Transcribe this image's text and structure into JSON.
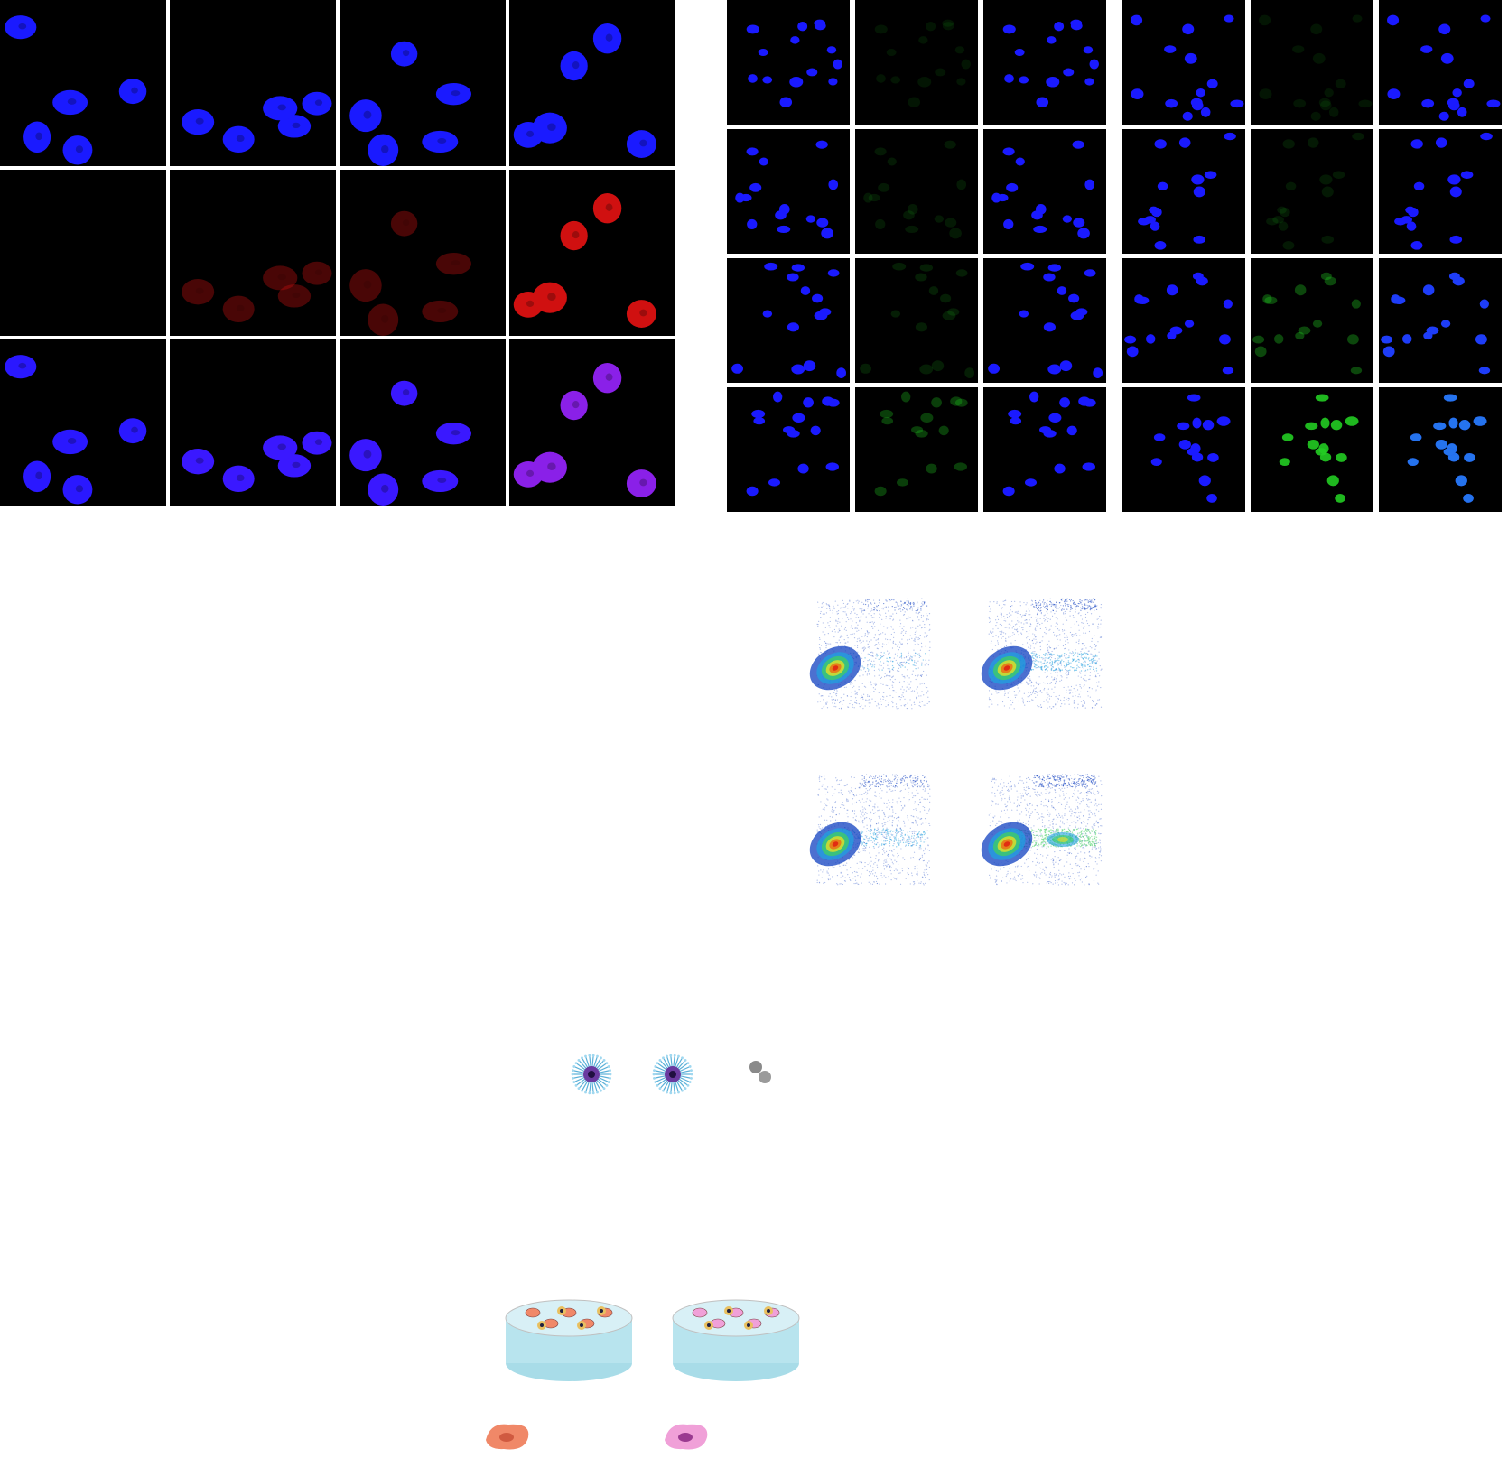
{
  "figure": {
    "panel_a": {
      "grid_rows": 3,
      "grid_cols": 4,
      "channels": [
        "dapi",
        "red",
        "merge"
      ],
      "channel_colors": {
        "dapi": "#1a1aff",
        "red": "#d01010",
        "merge_blue": "#2a18ff",
        "merge_purple": "#8a20e8"
      },
      "red_intensity_by_column": [
        0.0,
        0.35,
        0.35,
        1.0
      ]
    },
    "panel_b": {
      "grid_rows": 4,
      "grid_cols": 6,
      "channels": [
        "dapi",
        "green",
        "merge",
        "dapi",
        "green",
        "merge"
      ],
      "channel_colors": {
        "dapi": "#1a1aff",
        "green": "#22cc22",
        "merge": "#2a60ff"
      },
      "green_intensity_by_row_left": [
        0.1,
        0.12,
        0.15,
        0.3
      ],
      "green_intensity_by_row_right": [
        0.1,
        0.12,
        0.35,
        0.9
      ]
    },
    "panel_c": {
      "plots": 4,
      "colormap": [
        "#1040c0",
        "#20a0e0",
        "#40d060",
        "#f0e020",
        "#f06010",
        "#e01010"
      ],
      "second_population_strength": [
        0.15,
        0.55,
        0.45,
        0.9
      ]
    },
    "panel_d": {
      "particles": [
        "micelle-particle",
        "micelle-particle",
        "gold-nanoparticles"
      ]
    },
    "panel_e": {
      "dishes": 2,
      "cell_colors": [
        "#f08868",
        "#f0a0d8"
      ]
    }
  }
}
